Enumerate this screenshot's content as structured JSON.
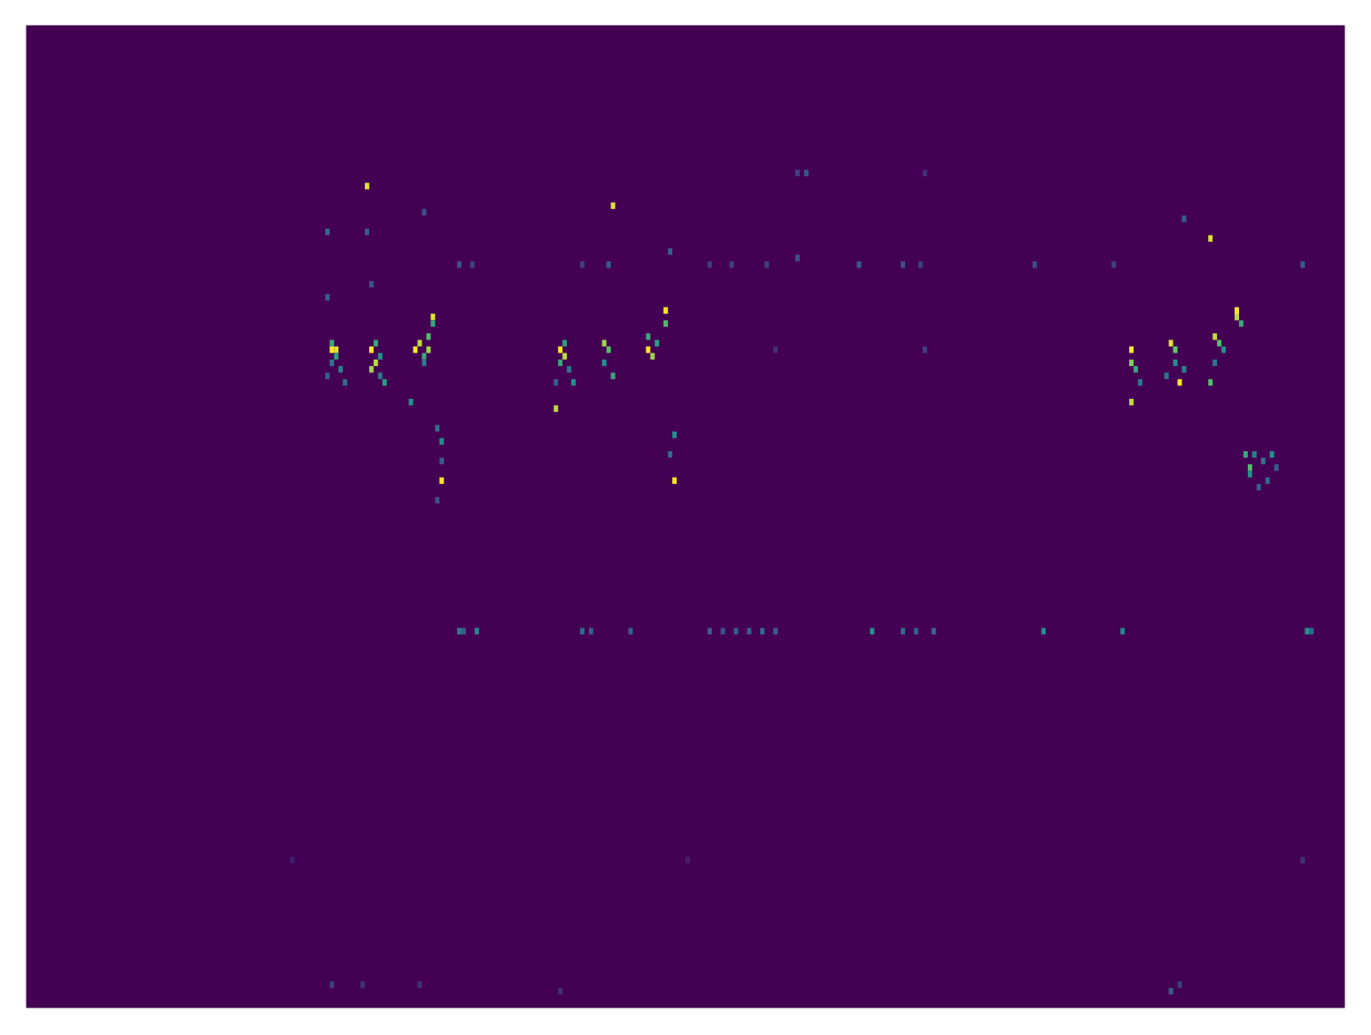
{
  "chart_data": {
    "type": "heatmap",
    "tick_labels": false,
    "xlim": [
      0,
      300
    ],
    "ylim": [
      0,
      150
    ],
    "color_range": [
      0,
      1
    ],
    "cells": [
      [
        69,
        100,
        1
      ],
      [
        70,
        100,
        0.95
      ],
      [
        69,
        101,
        0.6
      ],
      [
        70,
        99,
        0.55
      ],
      [
        69,
        98,
        0.4
      ],
      [
        68,
        96,
        0.3
      ],
      [
        71,
        97,
        0.45
      ],
      [
        72,
        95,
        0.35
      ],
      [
        78,
        100,
        1
      ],
      [
        79,
        98,
        0.9
      ],
      [
        78,
        97,
        0.85
      ],
      [
        79,
        101,
        0.6
      ],
      [
        80,
        99,
        0.5
      ],
      [
        80,
        96,
        0.4
      ],
      [
        81,
        95,
        0.55
      ],
      [
        77,
        125,
        0.95
      ],
      [
        77,
        118,
        0.3
      ],
      [
        78,
        110,
        0.25
      ],
      [
        88,
        100,
        1
      ],
      [
        89,
        101,
        0.9
      ],
      [
        90,
        99,
        0.6
      ],
      [
        91,
        100,
        0.85
      ],
      [
        91,
        102,
        0.7
      ],
      [
        92,
        105,
        0.95
      ],
      [
        92,
        104,
        0.6
      ],
      [
        90,
        98,
        0.4
      ],
      [
        87,
        92,
        0.5
      ],
      [
        94,
        80,
        1
      ],
      [
        94,
        86,
        0.5
      ],
      [
        93,
        88,
        0.35
      ],
      [
        94,
        83,
        0.3
      ],
      [
        90,
        121,
        0.25
      ],
      [
        68,
        118,
        0.35
      ],
      [
        68,
        108,
        0.3
      ],
      [
        121,
        100,
        1
      ],
      [
        122,
        99,
        0.9
      ],
      [
        121,
        98,
        0.6
      ],
      [
        122,
        101,
        0.55
      ],
      [
        123,
        97,
        0.4
      ],
      [
        120,
        91,
        0.9
      ],
      [
        124,
        95,
        0.5
      ],
      [
        131,
        101,
        0.85
      ],
      [
        132,
        100,
        0.7
      ],
      [
        131,
        98,
        0.5
      ],
      [
        133,
        96,
        0.6
      ],
      [
        133,
        122,
        0.95
      ],
      [
        132,
        113,
        0.3
      ],
      [
        141,
        100,
        1
      ],
      [
        142,
        99,
        0.85
      ],
      [
        141,
        102,
        0.6
      ],
      [
        143,
        101,
        0.55
      ],
      [
        145,
        106,
        1
      ],
      [
        145,
        104,
        0.7
      ],
      [
        147,
        80,
        1
      ],
      [
        147,
        87,
        0.5
      ],
      [
        146,
        84,
        0.35
      ],
      [
        146,
        115,
        0.3
      ],
      [
        251,
        100,
        1
      ],
      [
        251,
        98,
        0.8
      ],
      [
        252,
        97,
        0.6
      ],
      [
        251,
        92,
        0.9
      ],
      [
        253,
        95,
        0.4
      ],
      [
        260,
        101,
        0.95
      ],
      [
        261,
        100,
        0.75
      ],
      [
        262,
        95,
        1
      ],
      [
        261,
        98,
        0.5
      ],
      [
        259,
        96,
        0.4
      ],
      [
        263,
        97,
        0.45
      ],
      [
        263,
        120,
        0.3
      ],
      [
        270,
        102,
        0.9
      ],
      [
        271,
        101,
        0.7
      ],
      [
        269,
        117,
        0.95
      ],
      [
        269,
        95,
        0.7
      ],
      [
        272,
        100,
        0.5
      ],
      [
        270,
        98,
        0.4
      ],
      [
        275,
        106,
        1
      ],
      [
        275,
        105,
        0.9
      ],
      [
        276,
        104,
        0.6
      ],
      [
        277,
        84,
        0.6
      ],
      [
        278,
        82,
        0.7
      ],
      [
        279,
        84,
        0.45
      ],
      [
        278,
        81,
        0.5
      ],
      [
        281,
        83,
        0.4
      ],
      [
        283,
        84,
        0.5
      ],
      [
        282,
        80,
        0.35
      ],
      [
        280,
        79,
        0.3
      ],
      [
        284,
        82,
        0.3
      ],
      [
        98,
        57,
        0.4
      ],
      [
        99,
        57,
        0.3
      ],
      [
        102,
        57,
        0.45
      ],
      [
        126,
        57,
        0.35
      ],
      [
        128,
        57,
        0.3
      ],
      [
        137,
        57,
        0.3
      ],
      [
        155,
        57,
        0.3
      ],
      [
        158,
        57,
        0.25
      ],
      [
        161,
        57,
        0.3
      ],
      [
        164,
        57,
        0.3
      ],
      [
        167,
        57,
        0.35
      ],
      [
        170,
        57,
        0.3
      ],
      [
        192,
        57,
        0.5
      ],
      [
        199,
        57,
        0.35
      ],
      [
        202,
        57,
        0.3
      ],
      [
        206,
        57,
        0.35
      ],
      [
        231,
        57,
        0.5
      ],
      [
        249,
        57,
        0.45
      ],
      [
        291,
        57,
        0.5
      ],
      [
        292,
        57,
        0.35
      ],
      [
        98,
        113,
        0.25
      ],
      [
        101,
        113,
        0.2
      ],
      [
        126,
        113,
        0.2
      ],
      [
        155,
        113,
        0.2
      ],
      [
        160,
        113,
        0.2
      ],
      [
        168,
        113,
        0.2
      ],
      [
        175,
        114,
        0.25
      ],
      [
        189,
        113,
        0.3
      ],
      [
        199,
        113,
        0.25
      ],
      [
        203,
        113,
        0.2
      ],
      [
        229,
        113,
        0.25
      ],
      [
        247,
        113,
        0.2
      ],
      [
        290,
        113,
        0.3
      ],
      [
        175,
        127,
        0.2
      ],
      [
        177,
        127,
        0.25
      ],
      [
        204,
        127,
        0.15
      ],
      [
        93,
        77,
        0.25
      ],
      [
        120,
        95,
        0.3
      ],
      [
        170,
        100,
        0.15
      ],
      [
        204,
        100,
        0.2
      ],
      [
        69,
        3,
        0.2
      ],
      [
        76,
        3,
        0.15
      ],
      [
        89,
        3,
        0.15
      ],
      [
        121,
        2,
        0.15
      ],
      [
        260,
        2,
        0.3
      ],
      [
        262,
        3,
        0.2
      ],
      [
        60,
        22,
        0.1
      ],
      [
        150,
        22,
        0.1
      ],
      [
        290,
        22,
        0.15
      ]
    ]
  }
}
